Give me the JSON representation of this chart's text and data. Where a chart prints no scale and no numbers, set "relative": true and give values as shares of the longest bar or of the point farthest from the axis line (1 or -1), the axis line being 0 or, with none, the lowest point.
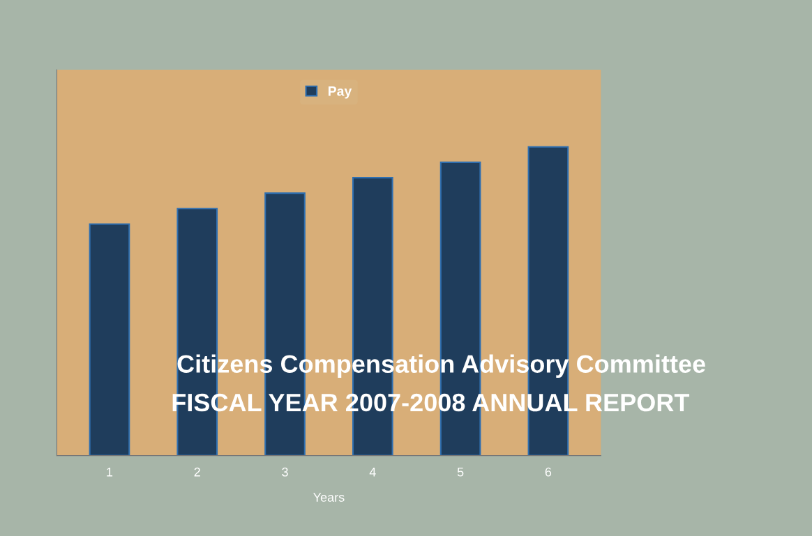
{
  "chart_data": {
    "type": "bar",
    "title": "Citizens Compensation Advisory Committee",
    "subtitle": "FISCAL YEAR 2007-2008 ANNUAL REPORT",
    "xlabel": "Years",
    "categories": [
      "1",
      "2",
      "3",
      "4",
      "5",
      "6"
    ],
    "series": [
      {
        "name": "Pay",
        "color": "#1f3d5c",
        "values": [
          0.75,
          0.8,
          0.85,
          0.9,
          0.95,
          1.0
        ]
      }
    ],
    "relative": true,
    "legend": "top",
    "grid": false
  }
}
